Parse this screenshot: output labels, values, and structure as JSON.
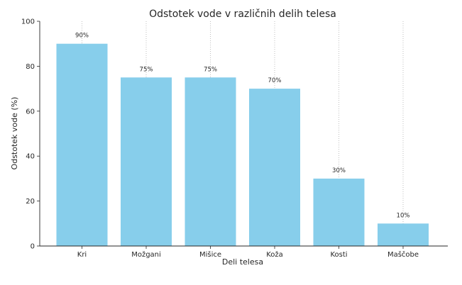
{
  "chart_data": {
    "type": "bar",
    "title": "Odstotek vode v različnih delih telesa",
    "xlabel": "Deli telesa",
    "ylabel": "Odstotek vode (%)",
    "categories": [
      "Kri",
      "Možgani",
      "Mišice",
      "Koža",
      "Kosti",
      "Maščobe"
    ],
    "values": [
      90,
      75,
      75,
      70,
      30,
      10
    ],
    "value_labels": [
      "90%",
      "75%",
      "75%",
      "70%",
      "30%",
      "10%"
    ],
    "ylim": [
      0,
      100
    ],
    "yticks": [
      0,
      20,
      40,
      60,
      80,
      100
    ],
    "grid": "vertical dotted at categories",
    "legend": "none",
    "bar_color": "#87ceeb"
  }
}
